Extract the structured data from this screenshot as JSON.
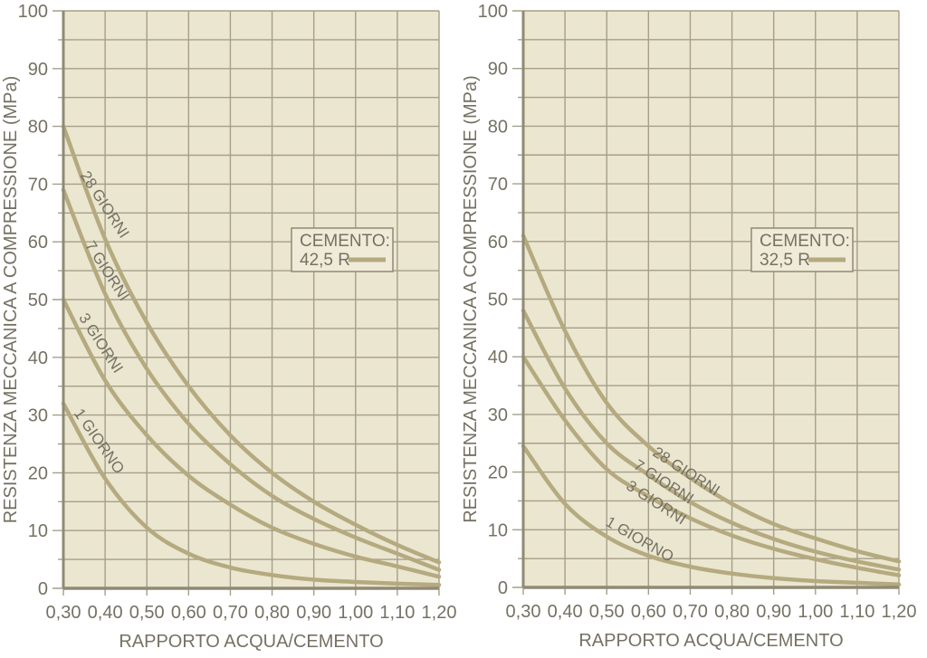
{
  "colors": {
    "page_background": "#ffffff",
    "plot_background": "#ebe6d0",
    "grid_line": "#a59f88",
    "axis_line": "#8f8a74",
    "curve": "#b5aa7f",
    "text": "#757163",
    "legend_background": "#f0ebd8",
    "legend_border": "#8f8a74"
  },
  "chart_data": [
    {
      "type": "line",
      "title": "CEMENTO: 42,5 R",
      "legend": {
        "line1": "CEMENTO:",
        "line2": "42,5 R",
        "position": "upper-right-inside"
      },
      "xlabel": "RAPPORTO ACQUA/CEMENTO",
      "ylabel": "RESISTENZA MECCANICA A COMPRESSIONE (MPa)",
      "xlim": [
        0.3,
        1.2
      ],
      "ylim": [
        0,
        100
      ],
      "grid": {
        "x_major_step": 0.1,
        "y_minor_step": 5,
        "y_major_step": 10,
        "on": true
      },
      "x": [
        0.3,
        0.4,
        0.5,
        0.6,
        0.7,
        0.8,
        0.9,
        1.0,
        1.1,
        1.2
      ],
      "x_tick_labels": [
        "0,30",
        "0,40",
        "0,50",
        "0,60",
        "0,70",
        "0,80",
        "0,90",
        "1,00",
        "1,10",
        "1,20"
      ],
      "y_ticks": [
        0,
        10,
        20,
        30,
        40,
        50,
        60,
        70,
        80,
        90,
        100
      ],
      "series": [
        {
          "name": "28 GIORNI",
          "values": [
            80,
            60.5,
            46,
            35,
            26.5,
            20,
            15,
            11,
            7.5,
            4.5
          ],
          "label": {
            "x": 0.389,
            "y": 66,
            "angle": 57
          }
        },
        {
          "name": "7 GIORNI",
          "values": [
            69,
            51,
            38,
            28.5,
            21.5,
            16,
            12,
            8.8,
            6,
            3.2
          ],
          "label": {
            "x": 0.395,
            "y": 54.5,
            "angle": 57
          }
        },
        {
          "name": "3 GIORNI",
          "values": [
            50,
            36,
            26.5,
            19.5,
            14.5,
            10.5,
            7.7,
            5.5,
            3.8,
            2.0
          ],
          "label": {
            "x": 0.38,
            "y": 42,
            "angle": 57
          }
        },
        {
          "name": "1 GIORNO",
          "values": [
            32,
            19,
            10.5,
            6,
            3.6,
            2.3,
            1.5,
            1.1,
            0.8,
            0.6
          ],
          "label": {
            "x": 0.376,
            "y": 25,
            "angle": 55
          }
        }
      ]
    },
    {
      "type": "line",
      "title": "CEMENTO: 32,5 R",
      "legend": {
        "line1": "CEMENTO:",
        "line2": "32,5 R",
        "position": "upper-right-inside"
      },
      "xlabel": "RAPPORTO ACQUA/CEMENTO",
      "ylabel": "RESISTENZA MECCANICA A COMPRESSIONE (MPa)",
      "xlim": [
        0.3,
        1.2
      ],
      "ylim": [
        0,
        100
      ],
      "grid": {
        "x_major_step": 0.1,
        "y_minor_step": 5,
        "y_major_step": 10,
        "on": true
      },
      "x": [
        0.3,
        0.4,
        0.5,
        0.6,
        0.7,
        0.8,
        0.9,
        1.0,
        1.1,
        1.2
      ],
      "x_tick_labels": [
        "0,30",
        "0,40",
        "0,50",
        "0,60",
        "0,70",
        "0,80",
        "0,90",
        "1,00",
        "1,10",
        "1,20"
      ],
      "y_ticks": [
        0,
        10,
        20,
        30,
        40,
        50,
        60,
        70,
        80,
        90,
        100
      ],
      "series": [
        {
          "name": "28 GIORNI",
          "values": [
            61,
            44.5,
            32,
            24.5,
            19,
            14.5,
            11,
            8.5,
            6.3,
            4.5
          ],
          "label": {
            "x": 0.684,
            "y": 19.4,
            "angle": 33
          }
        },
        {
          "name": "7 GIORNI",
          "values": [
            48,
            34.5,
            25,
            19.5,
            14.8,
            11.2,
            8.4,
            6.2,
            4.5,
            3.1
          ],
          "label": {
            "x": 0.63,
            "y": 17.6,
            "angle": 33
          }
        },
        {
          "name": "3 GIORNI",
          "values": [
            40,
            29,
            20.5,
            15.8,
            12,
            9,
            6.7,
            4.9,
            3.4,
            2.1
          ],
          "label": {
            "x": 0.612,
            "y": 14.0,
            "angle": 33
          }
        },
        {
          "name": "1 GIORNO",
          "values": [
            24.5,
            14.5,
            8.8,
            5.5,
            3.6,
            2.4,
            1.6,
            1.1,
            0.8,
            0.5
          ],
          "label": {
            "x": 0.573,
            "y": 7.6,
            "angle": 30
          }
        }
      ]
    }
  ]
}
